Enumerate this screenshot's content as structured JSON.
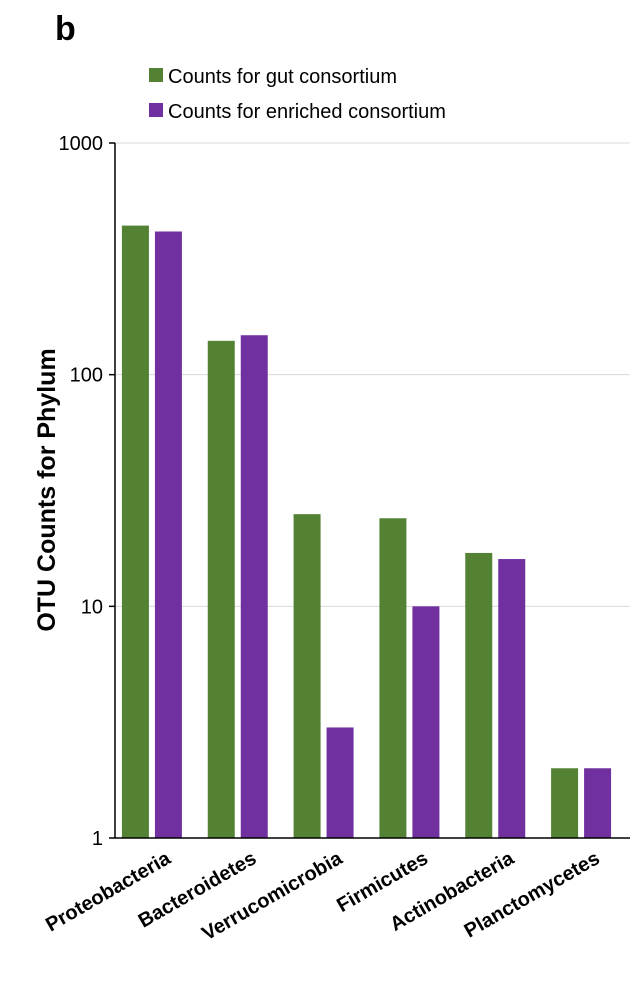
{
  "panel_label": "b",
  "colors": {
    "gut": "#548235",
    "enriched": "#7030a0",
    "grid": "#d9d9d9",
    "axis": "#000000"
  },
  "chart_data": {
    "type": "bar",
    "title": "",
    "xlabel": "",
    "ylabel": "OTU Counts for Phylum",
    "yscale": "log",
    "ylim": [
      1,
      1000
    ],
    "yticks": [
      "1",
      "10",
      "100",
      "1000"
    ],
    "grid": true,
    "legend_position": "top",
    "categories": [
      "Proteobacteria",
      "Bacteroidetes",
      "Verrucomicrobia",
      "Firmicutes",
      "Actinobacteria",
      "Planctomycetes"
    ],
    "series": [
      {
        "name": "Counts for gut consortium",
        "color": "#548235",
        "values": [
          440,
          140,
          25,
          24,
          17,
          2
        ]
      },
      {
        "name": "Counts for enriched consortium",
        "color": "#7030a0",
        "values": [
          415,
          148,
          3,
          10,
          16,
          2
        ]
      }
    ]
  }
}
